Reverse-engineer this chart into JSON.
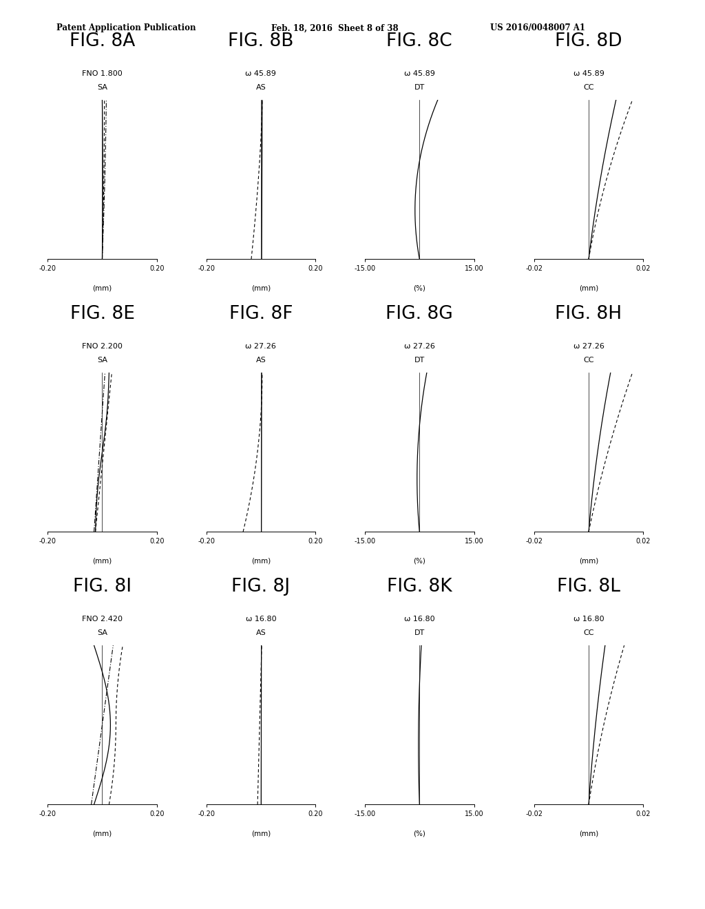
{
  "header_left": "Patent Application Publication",
  "header_mid": "Feb. 18, 2016  Sheet 8 of 38",
  "header_right": "US 2016/0048007 A1",
  "figures": [
    {
      "name": "FIG. 8A",
      "type": "SA",
      "subtitle": "FNO 1.800",
      "xlim": [
        -0.2,
        0.2
      ],
      "xlabel": "(mm)",
      "xticks": [
        -0.2,
        0.2
      ],
      "xticklabels": [
        "-0.20",
        "0.20"
      ]
    },
    {
      "name": "FIG. 8B",
      "type": "AS",
      "subtitle": "ω 45.89",
      "xlim": [
        -0.2,
        0.2
      ],
      "xlabel": "(mm)",
      "xticks": [
        -0.2,
        0.2
      ],
      "xticklabels": [
        "-0.20",
        "0.20"
      ]
    },
    {
      "name": "FIG. 8C",
      "type": "DT",
      "subtitle": "ω 45.89",
      "xlim": [
        -15.0,
        15.0
      ],
      "xlabel": "(%)",
      "xticks": [
        -15.0,
        15.0
      ],
      "xticklabels": [
        "-15.00",
        "15.00"
      ]
    },
    {
      "name": "FIG. 8D",
      "type": "CC",
      "subtitle": "ω 45.89",
      "xlim": [
        -0.02,
        0.02
      ],
      "xlabel": "(mm)",
      "xticks": [
        -0.02,
        0.02
      ],
      "xticklabels": [
        "-0.02",
        "0.02"
      ]
    },
    {
      "name": "FIG. 8E",
      "type": "SA",
      "subtitle": "FNO 2.200",
      "xlim": [
        -0.2,
        0.2
      ],
      "xlabel": "(mm)",
      "xticks": [
        -0.2,
        0.2
      ],
      "xticklabels": [
        "-0.20",
        "0.20"
      ]
    },
    {
      "name": "FIG. 8F",
      "type": "AS",
      "subtitle": "ω 27.26",
      "xlim": [
        -0.2,
        0.2
      ],
      "xlabel": "(mm)",
      "xticks": [
        -0.2,
        0.2
      ],
      "xticklabels": [
        "-0.20",
        "0.20"
      ]
    },
    {
      "name": "FIG. 8G",
      "type": "DT",
      "subtitle": "ω 27.26",
      "xlim": [
        -15.0,
        15.0
      ],
      "xlabel": "(%)",
      "xticks": [
        -15.0,
        15.0
      ],
      "xticklabels": [
        "-15.00",
        "15.00"
      ]
    },
    {
      "name": "FIG. 8H",
      "type": "CC",
      "subtitle": "ω 27.26",
      "xlim": [
        -0.02,
        0.02
      ],
      "xlabel": "(mm)",
      "xticks": [
        -0.02,
        0.02
      ],
      "xticklabels": [
        "-0.02",
        "0.02"
      ]
    },
    {
      "name": "FIG. 8I",
      "type": "SA",
      "subtitle": "FNO 2.420",
      "xlim": [
        -0.2,
        0.2
      ],
      "xlabel": "(mm)",
      "xticks": [
        -0.2,
        0.2
      ],
      "xticklabels": [
        "-0.20",
        "0.20"
      ]
    },
    {
      "name": "FIG. 8J",
      "type": "AS",
      "subtitle": "ω 16.80",
      "xlim": [
        -0.2,
        0.2
      ],
      "xlabel": "(mm)",
      "xticks": [
        -0.2,
        0.2
      ],
      "xticklabels": [
        "-0.20",
        "0.20"
      ]
    },
    {
      "name": "FIG. 8K",
      "type": "DT",
      "subtitle": "ω 16.80",
      "xlim": [
        -15.0,
        15.0
      ],
      "xlabel": "(%)",
      "xticks": [
        -15.0,
        15.0
      ],
      "xticklabels": [
        "-15.00",
        "15.00"
      ]
    },
    {
      "name": "FIG. 8L",
      "type": "CC",
      "subtitle": "ω 16.80",
      "xlim": [
        -0.02,
        0.02
      ],
      "xlabel": "(mm)",
      "xticks": [
        -0.02,
        0.02
      ],
      "xticklabels": [
        "-0.02",
        "0.02"
      ]
    }
  ],
  "background_color": "#ffffff"
}
